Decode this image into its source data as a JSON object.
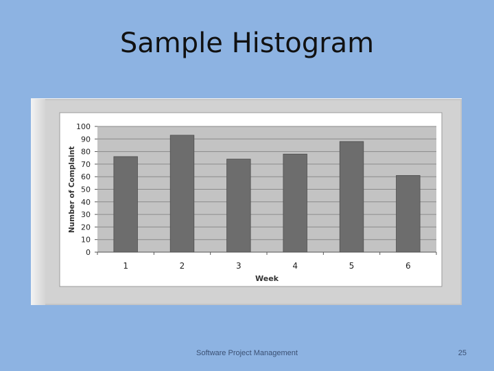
{
  "slide": {
    "title": "Sample Histogram",
    "footer": "Software Project Management",
    "page_number": "25",
    "background_color": "#8db3e2"
  },
  "chart_data": {
    "type": "bar",
    "categories": [
      "1",
      "2",
      "3",
      "4",
      "5",
      "6"
    ],
    "values": [
      76,
      93,
      74,
      78,
      88,
      61
    ],
    "title": "",
    "xlabel": "Week",
    "ylabel": "Number of Complaint",
    "ylim": [
      0,
      100
    ],
    "yticks": [
      0,
      10,
      20,
      30,
      40,
      50,
      60,
      70,
      80,
      90,
      100
    ],
    "grid": true,
    "legend": "none",
    "bar_color": "#6d6d6d",
    "plot_background": "#c3c3c3"
  }
}
